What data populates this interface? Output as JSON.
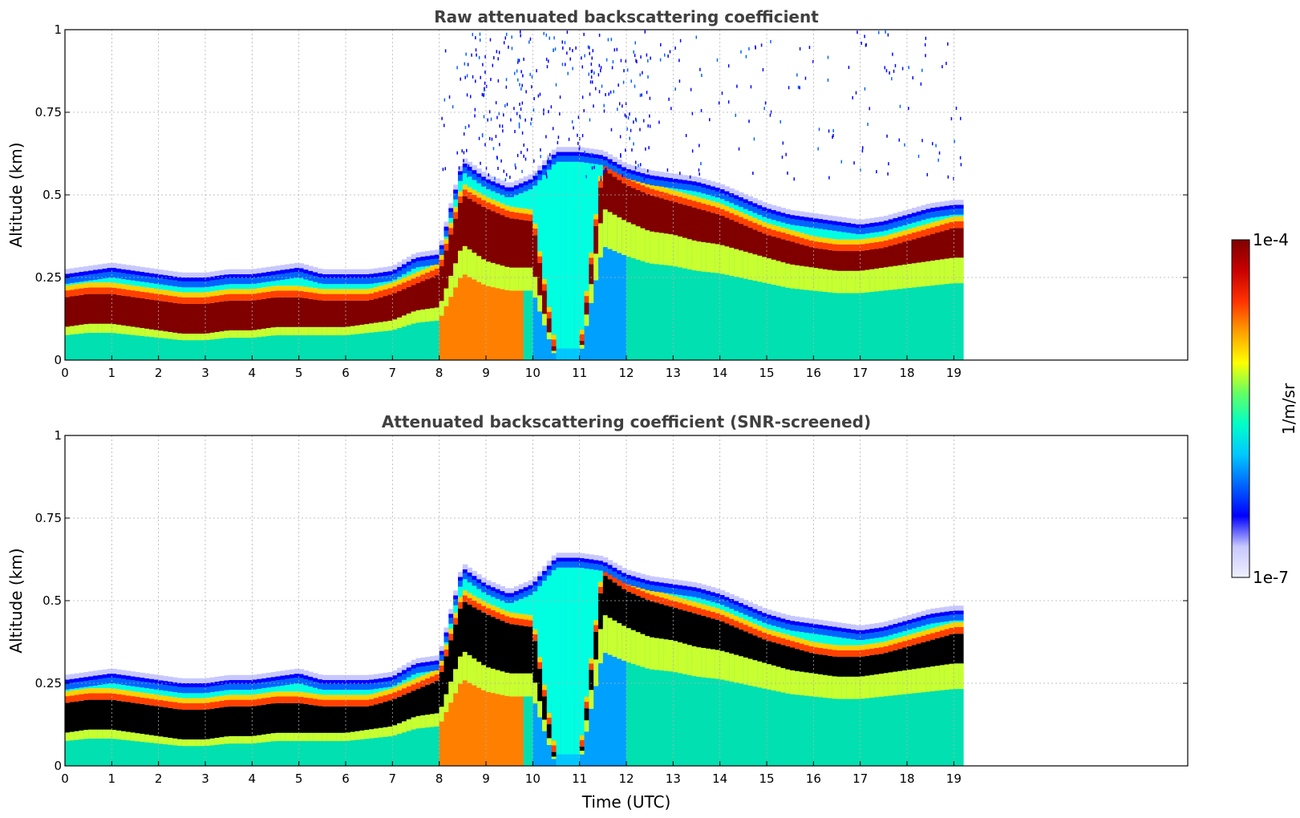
{
  "chart_data": [
    {
      "type": "heatmap",
      "title": "Raw attenuated backscattering coefficient",
      "xlabel": "",
      "ylabel": "Altitude (km)",
      "xlim": [
        0,
        24
      ],
      "ylim": [
        0,
        1
      ],
      "x_ticks": [
        "0",
        "1",
        "2",
        "3",
        "4",
        "5",
        "6",
        "7",
        "8",
        "9",
        "10",
        "11",
        "12",
        "13",
        "14",
        "15",
        "16",
        "17",
        "18",
        "19"
      ],
      "y_ticks": [
        "0",
        "0.25",
        "0.5",
        "0.75",
        "1"
      ],
      "grid": true,
      "data_end_time": 19.2,
      "layer_profile": {
        "time": [
          0,
          0.5,
          1,
          1.5,
          2,
          2.5,
          3,
          3.5,
          4,
          4.5,
          5,
          5.5,
          6,
          6.5,
          7,
          7.5,
          8,
          8.5,
          9,
          9.5,
          10,
          10.5,
          11,
          11.5,
          12,
          12.5,
          13,
          13.5,
          14,
          14.5,
          15,
          15.5,
          16,
          16.5,
          17,
          17.5,
          18,
          18.5,
          19,
          19.2
        ],
        "top_km": [
          0.26,
          0.27,
          0.28,
          0.27,
          0.26,
          0.25,
          0.25,
          0.26,
          0.26,
          0.27,
          0.28,
          0.26,
          0.26,
          0.26,
          0.27,
          0.31,
          0.32,
          0.6,
          0.55,
          0.52,
          0.55,
          0.63,
          0.63,
          0.62,
          0.58,
          0.56,
          0.55,
          0.54,
          0.52,
          0.49,
          0.46,
          0.44,
          0.43,
          0.42,
          0.41,
          0.42,
          0.44,
          0.46,
          0.47,
          0.47
        ],
        "core_top_km": [
          0.19,
          0.2,
          0.2,
          0.19,
          0.18,
          0.17,
          0.17,
          0.18,
          0.18,
          0.19,
          0.19,
          0.18,
          0.18,
          0.18,
          0.2,
          0.23,
          0.26,
          0.5,
          0.46,
          0.43,
          0.42,
          0.0,
          0.0,
          0.58,
          0.53,
          0.5,
          0.48,
          0.46,
          0.44,
          0.41,
          0.38,
          0.36,
          0.34,
          0.33,
          0.33,
          0.34,
          0.36,
          0.38,
          0.4,
          0.4
        ],
        "core_bottom_km": [
          0.1,
          0.11,
          0.11,
          0.1,
          0.09,
          0.08,
          0.08,
          0.09,
          0.09,
          0.1,
          0.1,
          0.1,
          0.1,
          0.11,
          0.12,
          0.15,
          0.16,
          0.35,
          0.3,
          0.28,
          0.28,
          0.0,
          0.0,
          0.46,
          0.42,
          0.39,
          0.38,
          0.36,
          0.35,
          0.33,
          0.31,
          0.29,
          0.28,
          0.27,
          0.27,
          0.28,
          0.29,
          0.3,
          0.31,
          0.31
        ]
      },
      "noise_region": {
        "time_start": 8.0,
        "time_end": 19.2,
        "altitude_start_km": 0.55,
        "altitude_end_km": 1.0
      }
    },
    {
      "type": "heatmap",
      "title": "Attenuated backscattering coefficient (SNR-screened)",
      "xlabel": "Time (UTC)",
      "ylabel": "Altitude (km)",
      "xlim": [
        0,
        24
      ],
      "ylim": [
        0,
        1
      ],
      "x_ticks": [
        "0",
        "1",
        "2",
        "3",
        "4",
        "5",
        "6",
        "7",
        "8",
        "9",
        "10",
        "11",
        "12",
        "13",
        "14",
        "15",
        "16",
        "17",
        "18",
        "19"
      ],
      "y_ticks": [
        "0",
        "0.25",
        "0.5",
        "0.75",
        "1"
      ],
      "grid": true,
      "data_end_time": 19.2,
      "screened_core_color": "#000000"
    }
  ],
  "colorbar": {
    "label": "1/m/sr",
    "max_label": "1e-4",
    "min_label": "1e-7",
    "colormap": [
      "#eef0ff",
      "#c8c8ff",
      "#0000ff",
      "#0064ff",
      "#00c8ff",
      "#00ffc8",
      "#64ff64",
      "#ffff00",
      "#ffa000",
      "#ff3200",
      "#c80000",
      "#800000"
    ]
  }
}
